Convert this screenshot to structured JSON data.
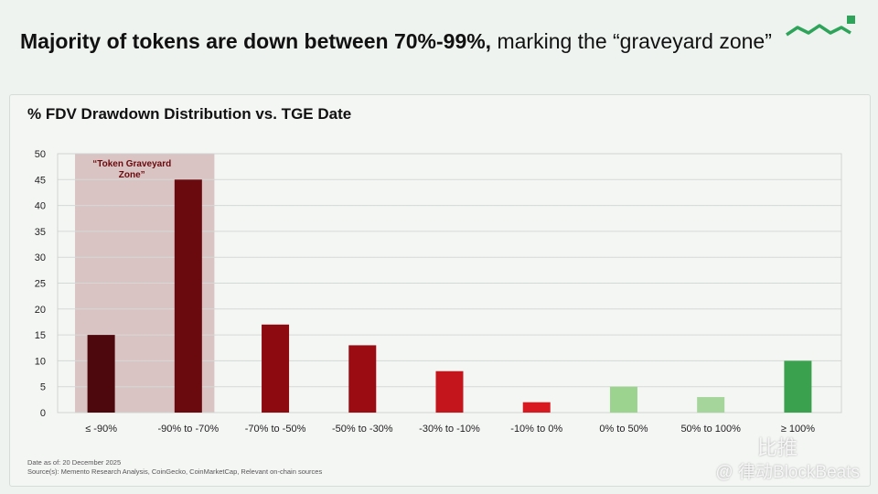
{
  "header": {
    "headline_bold": "Majority of tokens are down between 70%-99%,",
    "headline_rest": " marking the “graveyard zone”",
    "logo_icon": "memento-wave-icon"
  },
  "chart_data": {
    "type": "bar",
    "title": "% FDV Drawdown Distribution vs. TGE Date",
    "categories": [
      "≤ -90%",
      "-90% to -70%",
      "-70% to -50%",
      "-50% to -30%",
      "-30% to -10%",
      "-10% to 0%",
      "0% to 50%",
      "50% to 100%",
      "≥ 100%"
    ],
    "values": [
      15,
      45,
      17,
      13,
      8,
      2,
      5,
      3,
      10
    ],
    "colors": [
      "#4d080d",
      "#6a0a0e",
      "#8c0a10",
      "#9a0c12",
      "#c4151c",
      "#d81a20",
      "#9bd38f",
      "#a6d59b",
      "#3aa24e"
    ],
    "ylim": [
      0,
      50
    ],
    "yticks": [
      0,
      5,
      10,
      15,
      20,
      25,
      30,
      35,
      40,
      45,
      50
    ],
    "grid": true,
    "annotation": {
      "label_line1": "“Token Graveyard",
      "label_line2": "Zone”",
      "spans_categories": [
        "≤ -90%",
        "-90% to -70%"
      ],
      "color": "#7a1218"
    }
  },
  "footer": {
    "date_note": "Date as of: 20 December 2025",
    "source_note": "Source(s): Memento Research Analysis, CoinGecko, CoinMarketCap, Relevant on-chain sources"
  },
  "watermark": {
    "text1": "比推",
    "text2": "@ 律动BlockBeats"
  }
}
